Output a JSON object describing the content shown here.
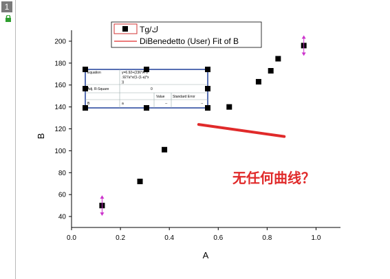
{
  "window": {
    "layer_number": "1"
  },
  "legend": {
    "items": [
      {
        "label": "Tg/ك",
        "symbol": "square"
      },
      {
        "label": "DiBenedetto (User) Fit of B",
        "symbol": "line"
      }
    ]
  },
  "annotation": {
    "text": "无任何曲线？"
  },
  "fit_table": {
    "rows": [
      [
        "Equation",
        "y=6.92+(236*A*0.927a*x/(1-(1-a)*x))",
        ""
      ],
      [
        "Adj. R-Square",
        "0",
        ""
      ],
      [
        "",
        "Value",
        "Standard Error"
      ],
      [
        "B",
        "a",
        "--",
        "--"
      ]
    ]
  },
  "chart_data": {
    "type": "scatter",
    "xlabel": "A",
    "ylabel": "B",
    "xlim": [
      0.0,
      1.1
    ],
    "ylim": [
      30,
      210
    ],
    "xticks": [
      0.0,
      0.2,
      0.4,
      0.6,
      0.8,
      1.0
    ],
    "yticks": [
      40,
      60,
      80,
      100,
      120,
      140,
      160,
      180,
      200
    ],
    "series": [
      {
        "name": "Tg/ك",
        "marker": "square",
        "color": "#000000",
        "x": [
          0.125,
          0.28,
          0.38,
          0.645,
          0.765,
          0.815,
          0.845,
          0.95
        ],
        "y": [
          50,
          72,
          101,
          140,
          163,
          173,
          184,
          196
        ]
      },
      {
        "name": "DiBenedetto (User) Fit of B",
        "type": "line",
        "color": "#e02a2a",
        "x": [
          0.52,
          0.87
        ],
        "y": [
          124,
          113
        ]
      }
    ],
    "grid": false,
    "legend_position": "top"
  },
  "colors": {
    "axis": "#000000",
    "fit": "#e02a2a",
    "handle": "#cc33cc",
    "table_border": "#1e3f9a"
  }
}
